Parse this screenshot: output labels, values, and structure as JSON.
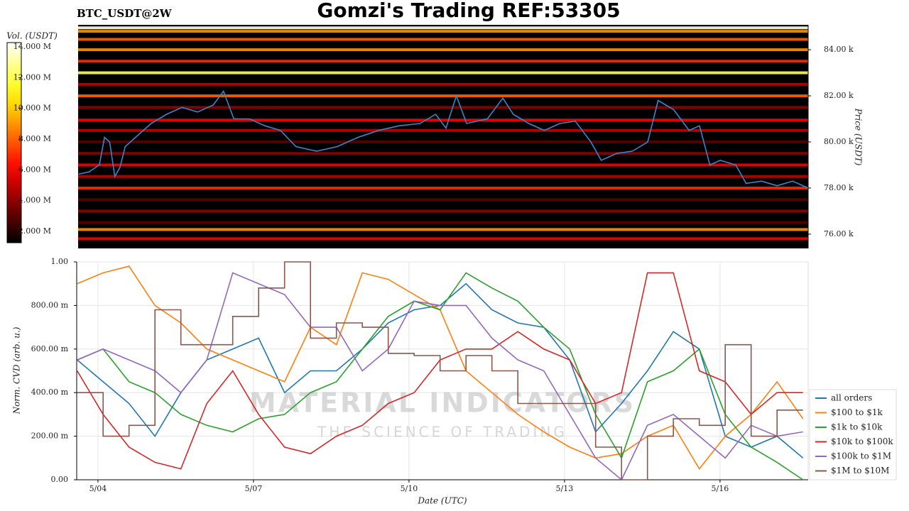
{
  "chart_data": [
    {
      "type": "heatmap",
      "title": "Gomzi's Trading REF:53305",
      "subtitle": "BTC_USDT@2W",
      "ylabel": "Price (USDT)",
      "cbar_label": "Vol. (USDT)",
      "xlim": [
        3.59,
        17.7
      ],
      "ylim": [
        75380,
        85080
      ],
      "yticks": [
        {
          "value": 76000,
          "label": "76.00 k"
        },
        {
          "value": 78000,
          "label": "78.00 k"
        },
        {
          "value": 80000,
          "label": "80.00 k"
        },
        {
          "value": 82000,
          "label": "82.00 k"
        },
        {
          "value": 84000,
          "label": "84.00 k"
        }
      ],
      "clim": [
        1260000,
        14280000
      ],
      "cticks": [
        {
          "value": 2000000,
          "label": "2.000 M"
        },
        {
          "value": 4000000,
          "label": "4.000 M"
        },
        {
          "value": 6000000,
          "label": "6.000 M"
        },
        {
          "value": 8000000,
          "label": "8.000 M"
        },
        {
          "value": 10000000,
          "label": "10.000 M"
        },
        {
          "value": 12000000,
          "label": "12.000 M"
        },
        {
          "value": 14000000,
          "label": "14.000 M"
        }
      ],
      "levels": [
        {
          "price": 84950,
          "volume": 14000000
        },
        {
          "price": 84800,
          "volume": 9000000
        },
        {
          "price": 84450,
          "volume": 8000000
        },
        {
          "price": 84000,
          "volume": 9000000
        },
        {
          "price": 83500,
          "volume": 7000000
        },
        {
          "price": 83000,
          "volume": 12000000
        },
        {
          "price": 82500,
          "volume": 5000000
        },
        {
          "price": 82000,
          "volume": 8000000
        },
        {
          "price": 81500,
          "volume": 4000000
        },
        {
          "price": 80950,
          "volume": 6000000
        },
        {
          "price": 80500,
          "volume": 5000000
        },
        {
          "price": 80000,
          "volume": 3000000
        },
        {
          "price": 79500,
          "volume": 4000000
        },
        {
          "price": 79000,
          "volume": 6000000
        },
        {
          "price": 78500,
          "volume": 5000000
        },
        {
          "price": 78000,
          "volume": 7000000
        },
        {
          "price": 77500,
          "volume": 3000000
        },
        {
          "price": 77000,
          "volume": 4000000
        },
        {
          "price": 76500,
          "volume": 3000000
        },
        {
          "price": 76200,
          "volume": 9000000
        },
        {
          "price": 75800,
          "volume": 6000000
        }
      ],
      "series": [
        {
          "color": "#3a86c8",
          "x": [
            3.6,
            3.8,
            4.0,
            4.1,
            4.2,
            4.3,
            4.4,
            4.5,
            4.7,
            5.0,
            5.3,
            5.6,
            5.9,
            6.2,
            6.4,
            6.6,
            6.9,
            7.2,
            7.5,
            7.8,
            8.2,
            8.6,
            9.0,
            9.4,
            9.8,
            10.2,
            10.5,
            10.7,
            10.9,
            11.1,
            11.5,
            11.8,
            12.0,
            12.3,
            12.6,
            12.9,
            13.2,
            13.5,
            13.7,
            14.0,
            14.3,
            14.6,
            14.8,
            15.1,
            15.4,
            15.6,
            15.8,
            16.0,
            16.3,
            16.5,
            16.8,
            17.1,
            17.4,
            17.7
          ],
          "values": [
            78600,
            78700,
            79000,
            80200,
            80000,
            78500,
            78900,
            79800,
            80200,
            80800,
            81200,
            81500,
            81300,
            81600,
            82200,
            81000,
            81000,
            80700,
            80500,
            79800,
            79600,
            79800,
            80200,
            80500,
            80700,
            80800,
            81200,
            80600,
            82000,
            80800,
            81000,
            81900,
            81200,
            80800,
            80500,
            80800,
            80900,
            80000,
            79200,
            79500,
            79600,
            80000,
            81800,
            81400,
            80500,
            80700,
            79000,
            79200,
            79000,
            78200,
            78300,
            78100,
            78300,
            78000
          ]
        }
      ]
    },
    {
      "type": "line",
      "ylabel": "Norm. CVD (arb. u.)",
      "xlabel": "Date (UTC)",
      "watermark": "MATERIAL INDICATORS",
      "watermark_sub": "THE SCIENCE OF TRADING",
      "xlim": [
        3.59,
        17.7
      ],
      "ylim": [
        0,
        1.0
      ],
      "grid": true,
      "legend": "lower right",
      "xticks": [
        {
          "value": 4,
          "label": "5/04"
        },
        {
          "value": 7,
          "label": "5/07"
        },
        {
          "value": 10,
          "label": "5/10"
        },
        {
          "value": 13,
          "label": "5/13"
        },
        {
          "value": 16,
          "label": "5/16"
        }
      ],
      "yticks": [
        {
          "value": 0,
          "label": "0.00"
        },
        {
          "value": 0.2,
          "label": "200.00 m"
        },
        {
          "value": 0.4,
          "label": "400.00 m"
        },
        {
          "value": 0.6,
          "label": "600.00 m"
        },
        {
          "value": 0.8,
          "label": "800.00 m"
        },
        {
          "value": 1.0,
          "label": "1.00"
        }
      ],
      "x": [
        3.6,
        4.1,
        4.6,
        5.1,
        5.6,
        6.1,
        6.6,
        7.1,
        7.6,
        8.1,
        8.6,
        9.1,
        9.6,
        10.1,
        10.6,
        11.1,
        11.6,
        12.1,
        12.6,
        13.1,
        13.6,
        14.1,
        14.6,
        15.1,
        15.6,
        16.1,
        16.6,
        17.1,
        17.6
      ],
      "series": [
        {
          "name": "all orders",
          "color": "#1f77b4",
          "values": [
            0.55,
            0.45,
            0.35,
            0.2,
            0.4,
            0.55,
            0.6,
            0.65,
            0.4,
            0.5,
            0.5,
            0.6,
            0.72,
            0.78,
            0.8,
            0.9,
            0.78,
            0.72,
            0.7,
            0.55,
            0.22,
            0.35,
            0.5,
            0.68,
            0.6,
            0.2,
            0.15,
            0.2,
            0.1
          ]
        },
        {
          "name": "$100 to $1k",
          "color": "#ff7f0e",
          "values": [
            0.9,
            0.95,
            0.98,
            0.8,
            0.72,
            0.6,
            0.55,
            0.5,
            0.45,
            0.7,
            0.62,
            0.95,
            0.92,
            0.85,
            0.78,
            0.5,
            0.4,
            0.3,
            0.22,
            0.15,
            0.1,
            0.12,
            0.2,
            0.25,
            0.05,
            0.2,
            0.3,
            0.45,
            0.28
          ]
        },
        {
          "name": "$1k to $10k",
          "color": "#2ca02c",
          "values": [
            0.55,
            0.6,
            0.45,
            0.4,
            0.3,
            0.25,
            0.22,
            0.28,
            0.3,
            0.4,
            0.45,
            0.6,
            0.75,
            0.82,
            0.78,
            0.95,
            0.88,
            0.82,
            0.7,
            0.6,
            0.3,
            0.1,
            0.45,
            0.5,
            0.6,
            0.3,
            0.15,
            0.08,
            0.0
          ]
        },
        {
          "name": "$10k to $100k",
          "color": "#d62728",
          "values": [
            0.5,
            0.3,
            0.15,
            0.08,
            0.05,
            0.35,
            0.5,
            0.3,
            0.15,
            0.12,
            0.2,
            0.25,
            0.35,
            0.4,
            0.55,
            0.6,
            0.6,
            0.68,
            0.6,
            0.55,
            0.35,
            0.4,
            0.95,
            0.95,
            0.5,
            0.45,
            0.3,
            0.4,
            0.4
          ]
        },
        {
          "name": "$100k to $1M",
          "color": "#9467bd",
          "values": [
            0.55,
            0.6,
            0.55,
            0.5,
            0.4,
            0.55,
            0.95,
            0.9,
            0.85,
            0.7,
            0.7,
            0.5,
            0.6,
            0.82,
            0.8,
            0.8,
            0.65,
            0.55,
            0.5,
            0.3,
            0.1,
            0.0,
            0.25,
            0.3,
            0.2,
            0.1,
            0.25,
            0.2,
            0.22
          ]
        },
        {
          "name": "$1M to $10M",
          "color": "#8c564b",
          "drawstyle": "steps-post",
          "values": [
            0.4,
            0.2,
            0.25,
            0.78,
            0.62,
            0.62,
            0.75,
            0.88,
            1.0,
            0.65,
            0.72,
            0.7,
            0.58,
            0.57,
            0.5,
            0.57,
            0.5,
            0.35,
            0.35,
            0.35,
            0.15,
            0.0,
            0.2,
            0.28,
            0.25,
            0.62,
            0.2,
            0.32,
            0.32
          ]
        }
      ]
    }
  ]
}
